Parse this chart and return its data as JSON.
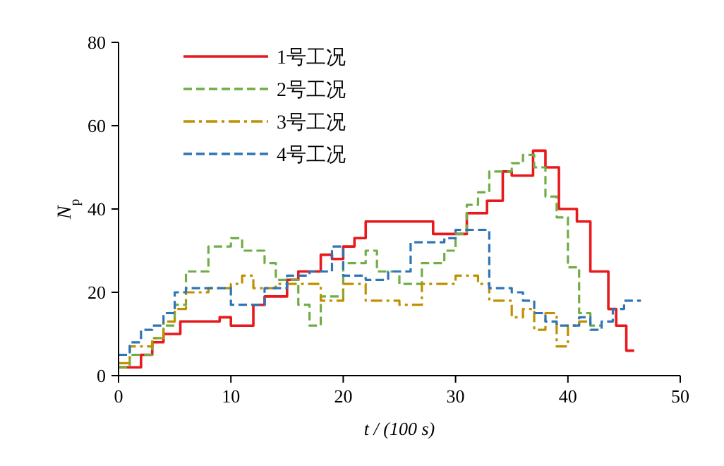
{
  "chart_data": {
    "type": "step",
    "xlabel": "t / (100 s)",
    "ylabel": "N$_{p}$",
    "xlim": [
      0,
      50
    ],
    "ylim": [
      0,
      80
    ],
    "xticks": [
      0,
      10,
      20,
      30,
      40,
      50
    ],
    "yticks": [
      0,
      20,
      40,
      60,
      80
    ],
    "grid": false,
    "legend": "top left",
    "series": [
      {
        "name": "1号工况",
        "color": "#e8191c",
        "line_style": "solid",
        "x": [
          0,
          2,
          3,
          4,
          5.5,
          9,
          10,
          12,
          13,
          15,
          16,
          18,
          19,
          20,
          21,
          22,
          28,
          31,
          32.8,
          34.2,
          35,
          36.9,
          38,
          39.2,
          40.8,
          42,
          43.6,
          44.3,
          45.2,
          45.9
        ],
        "values": [
          2,
          5,
          8,
          10,
          13,
          14,
          12,
          17,
          19,
          23,
          25,
          29,
          28,
          31,
          33,
          37,
          34,
          39,
          42,
          49,
          48,
          54,
          50,
          40,
          37,
          25,
          16,
          12,
          6,
          6
        ]
      },
      {
        "name": "2号工况",
        "color": "#70ad47",
        "line_style": "dashed",
        "x": [
          0,
          1,
          3,
          4,
          5,
          6,
          8,
          10,
          11,
          13,
          14,
          16,
          17,
          18,
          20,
          22,
          23,
          25,
          27,
          29,
          30,
          31,
          32,
          33,
          35,
          36,
          37,
          38,
          39,
          40,
          41,
          42,
          43
        ],
        "values": [
          2,
          5,
          9,
          12,
          17,
          25,
          31,
          33,
          30,
          27,
          23,
          17,
          12,
          19,
          27,
          30,
          25,
          22,
          27,
          30,
          34,
          41,
          44,
          49,
          51,
          53,
          50,
          43,
          38,
          26,
          15,
          12,
          12
        ]
      },
      {
        "name": "3号工况",
        "color": "#bf9000",
        "line_style": "dotted",
        "x": [
          0,
          1,
          3,
          4,
          5,
          6,
          8,
          10,
          11,
          12,
          14,
          18,
          20,
          22,
          25,
          27,
          30,
          32,
          33,
          35,
          36,
          37,
          38,
          39,
          40,
          41,
          42
        ],
        "values": [
          3,
          7,
          9,
          13,
          16,
          20,
          21,
          22,
          24,
          21,
          22,
          18,
          22,
          18,
          17,
          22,
          24,
          22,
          18,
          14,
          16,
          11,
          15,
          7,
          12,
          13,
          13
        ]
      },
      {
        "name": "4号工况",
        "color": "#2e75b6",
        "line_style": "dashed",
        "x": [
          0,
          1,
          2,
          3,
          4,
          5,
          6,
          10,
          13,
          15,
          17,
          19,
          20,
          22,
          24,
          26,
          29,
          30,
          33,
          35,
          36,
          37,
          38,
          39,
          41,
          42,
          43,
          44,
          45,
          46.5
        ],
        "values": [
          5,
          8,
          11,
          12,
          15,
          20,
          21,
          17,
          21,
          24,
          25,
          31,
          24,
          23,
          25,
          32,
          33,
          35,
          21,
          20,
          18,
          15,
          13,
          12,
          14,
          11,
          13,
          16,
          18,
          18
        ]
      }
    ]
  }
}
